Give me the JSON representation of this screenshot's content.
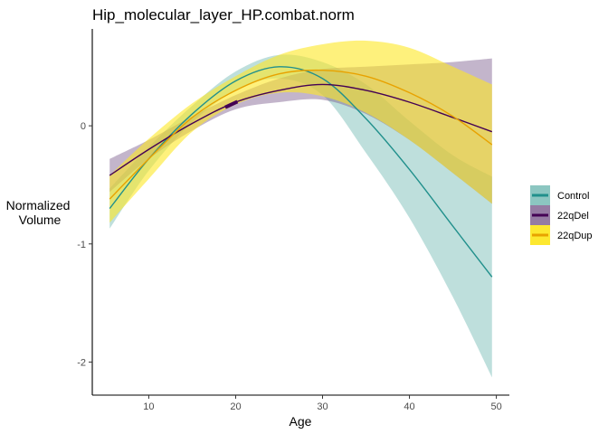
{
  "chart_data": {
    "type": "line",
    "title": "Hip_molecular_layer_HP.combat.norm",
    "xlabel": "Age",
    "ylabel": [
      "Normalized",
      "Volume"
    ],
    "xlim": [
      3.5,
      51.5
    ],
    "ylim": [
      -2.28,
      0.82
    ],
    "xticks": [
      10,
      20,
      30,
      40,
      50
    ],
    "yticks": [
      -2,
      -1,
      0
    ],
    "grid": false,
    "legend_position": "right",
    "x": [
      5.5,
      10,
      15,
      20,
      25,
      30,
      35,
      40,
      45,
      49.5
    ],
    "series": [
      {
        "name": "Control",
        "color": "#21908C",
        "fill": "#6FB8B2",
        "fill_opacity": 0.45,
        "values": [
          -0.7,
          -0.28,
          0.1,
          0.38,
          0.5,
          0.4,
          0.06,
          -0.37,
          -0.85,
          -1.28
        ],
        "lower": [
          -0.87,
          -0.38,
          0.03,
          0.3,
          0.4,
          0.26,
          -0.23,
          -0.78,
          -1.45,
          -2.13
        ],
        "upper": [
          -0.53,
          -0.18,
          0.17,
          0.46,
          0.6,
          0.54,
          0.35,
          0.04,
          -0.25,
          -0.43
        ]
      },
      {
        "name": "22qDel",
        "color": "#440154",
        "fill": "#7B5A8C",
        "fill_opacity": 0.45,
        "values": [
          -0.42,
          -0.2,
          0.02,
          0.2,
          0.3,
          0.35,
          0.3,
          0.2,
          0.07,
          -0.05
        ],
        "lower": [
          -0.56,
          -0.28,
          -0.04,
          0.14,
          0.2,
          0.22,
          0.1,
          -0.12,
          -0.4,
          -0.66
        ],
        "upper": [
          -0.28,
          -0.12,
          0.08,
          0.26,
          0.4,
          0.48,
          0.5,
          0.52,
          0.54,
          0.57
        ],
        "data_range": [
          18.8,
          20.2
        ]
      },
      {
        "name": "22qDup",
        "color": "#E8A200",
        "fill": "#FDE725",
        "fill_opacity": 0.6,
        "values": [
          -0.62,
          -0.28,
          0.07,
          0.3,
          0.44,
          0.47,
          0.42,
          0.28,
          0.08,
          -0.16
        ],
        "lower": [
          -0.82,
          -0.45,
          -0.05,
          0.18,
          0.28,
          0.25,
          0.11,
          -0.12,
          -0.4,
          -0.66
        ],
        "upper": [
          -0.42,
          -0.11,
          0.19,
          0.42,
          0.6,
          0.69,
          0.72,
          0.66,
          0.5,
          0.35
        ]
      }
    ]
  }
}
